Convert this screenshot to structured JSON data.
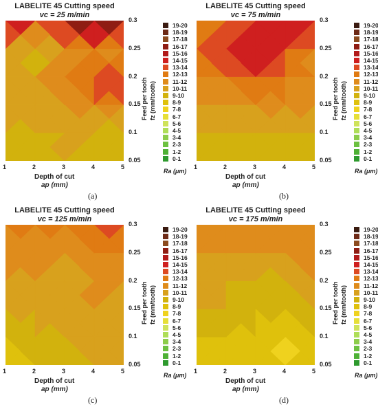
{
  "colors": {
    "0-1": "#2e9a2e",
    "1-2": "#4eb135",
    "2-3": "#6cc140",
    "3-4": "#8ccd4a",
    "4-5": "#aede58",
    "5-6": "#cfe35a",
    "6-7": "#e6df38",
    "7-8": "#efd21e",
    "8-9": "#dfc10c",
    "9-10": "#d2b20d",
    "10-11": "#d8a11d",
    "11-12": "#df8c1c",
    "12-13": "#e07b13",
    "13-14": "#dd4a22",
    "14-15": "#cf1f1f",
    "15-16": "#b21a1a",
    "16-17": "#8f1d13",
    "17-18": "#8c4b1f",
    "18-19": "#6e2a16",
    "19-20": "#3a1b10"
  },
  "legend": {
    "entries": [
      "19-20",
      "18-19",
      "17-18",
      "16-17",
      "15-16",
      "14-15",
      "13-14",
      "12-13",
      "11-12",
      "10-11",
      "9-10",
      "8-9",
      "7-8",
      "6-7",
      "5-6",
      "4-5",
      "3-4",
      "2-3",
      "1-2",
      "0-1"
    ],
    "unit_label": "Ra (μm)"
  },
  "axis_text": {
    "x_title": "Depth of cut",
    "x_symbol": "ap (mm)",
    "y_title": "Feed per tooth",
    "y_symbol": "fz (mm/tooth)"
  },
  "panels": [
    {
      "title": "LABELITE 45 Cutting speed",
      "subtitle": "vc = 25 m/min",
      "caption": "(a)"
    },
    {
      "title": "LABELITE 45 Cutting speed",
      "subtitle": "vc = 75 m/min",
      "caption": "(b)"
    },
    {
      "title": "LABELITE 45 Cutting speed",
      "subtitle": "vc = 125 m/min",
      "caption": "(c)"
    },
    {
      "title": "LABELITE 45 Cutting speed",
      "subtitle": "vc = 175 m/min",
      "caption": "(d)"
    }
  ],
  "chart_data": [
    {
      "type": "heatmap",
      "title": "LABELITE 45 Cutting speed",
      "subtitle": "vc = 25 m/min",
      "xlabel": "Depth of cut ap (mm)",
      "ylabel": "Feed per tooth fz (mm/tooth)",
      "x": [
        1,
        2,
        3,
        4,
        5
      ],
      "y": [
        0.05,
        0.1,
        0.15,
        0.2,
        0.25,
        0.3
      ],
      "xlim": [
        1,
        5
      ],
      "ylim": [
        0.05,
        0.3
      ],
      "z_label": "Ra (μm)",
      "z": [
        [
          9.2,
          9.6,
          10.0,
          9.0,
          11.2
        ],
        [
          10.2,
          9.4,
          10.6,
          9.8,
          8.8
        ],
        [
          10.8,
          10.4,
          11.3,
          12.2,
          11.6
        ],
        [
          10.6,
          10.9,
          11.6,
          13.8,
          14.4
        ],
        [
          11.8,
          8.4,
          11.5,
          11.0,
          11.6
        ],
        [
          15.8,
          14.4,
          15.2,
          19.3,
          14.6
        ]
      ]
    },
    {
      "type": "heatmap",
      "title": "LABELITE 45 Cutting speed",
      "subtitle": "vc = 75 m/min",
      "xlabel": "Depth of cut ap (mm)",
      "ylabel": "Feed per tooth fz (mm/tooth)",
      "x": [
        1,
        2,
        3,
        4,
        5
      ],
      "y": [
        0.05,
        0.1,
        0.15,
        0.2,
        0.25,
        0.3
      ],
      "xlim": [
        1,
        5
      ],
      "ylim": [
        0.05,
        0.3
      ],
      "z_label": "Ra (μm)",
      "z": [
        [
          8.6,
          9.2,
          9.6,
          9.3,
          9.1
        ],
        [
          9.4,
          10.3,
          9.8,
          10.2,
          10.0
        ],
        [
          10.6,
          11.4,
          10.9,
          11.6,
          11.0
        ],
        [
          11.2,
          12.4,
          13.6,
          12.3,
          11.4
        ],
        [
          12.4,
          14.2,
          14.8,
          13.9,
          12.0
        ],
        [
          11.6,
          12.8,
          14.4,
          15.6,
          14.2
        ]
      ]
    },
    {
      "type": "heatmap",
      "title": "LABELITE 45 Cutting speed",
      "subtitle": "vc = 125 m/min",
      "xlabel": "Depth of cut ap (mm)",
      "ylabel": "Feed per tooth fz (mm/tooth)",
      "x": [
        1,
        2,
        3,
        4,
        5
      ],
      "y": [
        0.05,
        0.1,
        0.15,
        0.2,
        0.25,
        0.3
      ],
      "xlim": [
        1,
        5
      ],
      "ylim": [
        0.05,
        0.3
      ],
      "z_label": "Ra (μm)",
      "z": [
        [
          8.6,
          9.0,
          9.4,
          10.2,
          10.6
        ],
        [
          9.2,
          9.6,
          10.0,
          10.8,
          9.8
        ],
        [
          10.0,
          10.4,
          10.6,
          11.4,
          10.2
        ],
        [
          10.8,
          11.0,
          10.4,
          11.2,
          11.6
        ],
        [
          11.4,
          11.2,
          11.0,
          11.6,
          12.0
        ],
        [
          12.2,
          12.8,
          12.4,
          14.0,
          13.0
        ]
      ]
    },
    {
      "type": "heatmap",
      "title": "LABELITE 45 Cutting speed",
      "subtitle": "vc = 175 m/min",
      "xlabel": "Depth of cut ap (mm)",
      "ylabel": "Feed per tooth fz (mm/tooth)",
      "x": [
        1,
        2,
        3,
        4,
        5
      ],
      "y": [
        0.05,
        0.1,
        0.15,
        0.2,
        0.25,
        0.3
      ],
      "xlim": [
        1,
        5
      ],
      "ylim": [
        0.05,
        0.3
      ],
      "z_label": "Ra (μm)",
      "z": [
        [
          8.6,
          8.8,
          8.4,
          7.8,
          8.6
        ],
        [
          9.2,
          8.6,
          8.4,
          7.6,
          9.4
        ],
        [
          10.4,
          9.8,
          9.6,
          9.2,
          10.6
        ],
        [
          10.8,
          10.2,
          9.4,
          10.0,
          10.6
        ],
        [
          11.0,
          10.8,
          11.2,
          11.0,
          11.6
        ],
        [
          11.6,
          11.4,
          11.0,
          11.6,
          12.4
        ]
      ]
    }
  ]
}
